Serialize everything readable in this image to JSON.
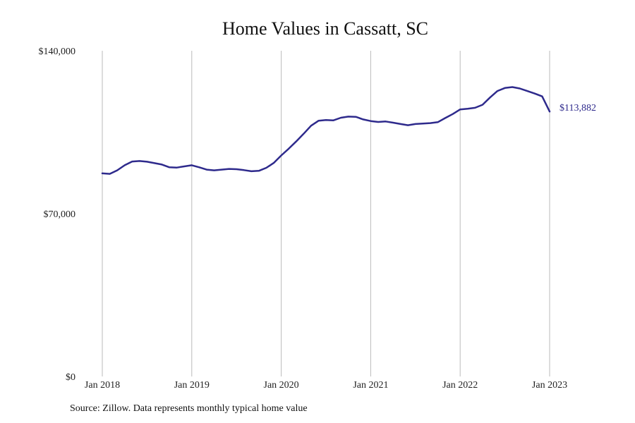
{
  "chart_data": {
    "type": "line",
    "title": "Home Values in Cassatt, SC",
    "xlabel": "",
    "ylabel": "",
    "ylim": [
      0,
      140000
    ],
    "xlim": [
      "2018-01",
      "2023-01"
    ],
    "grid": {
      "vertical": true,
      "horizontal": false
    },
    "legend": "none",
    "line_color": "#2e2a8c",
    "grid_color": "#bbbbbb",
    "y_ticks": [
      {
        "value": 0,
        "label": "$0"
      },
      {
        "value": 70000,
        "label": "$70,000"
      },
      {
        "value": 140000,
        "label": "$140,000"
      }
    ],
    "x_ticks": [
      {
        "value": "2018-01",
        "label": "Jan 2018"
      },
      {
        "value": "2019-01",
        "label": "Jan 2019"
      },
      {
        "value": "2020-01",
        "label": "Jan 2020"
      },
      {
        "value": "2021-01",
        "label": "Jan 2021"
      },
      {
        "value": "2022-01",
        "label": "Jan 2022"
      },
      {
        "value": "2023-01",
        "label": "Jan 2023"
      }
    ],
    "end_label": "$113,882",
    "series": [
      {
        "x": [
          "2018-01",
          "2018-02",
          "2018-03",
          "2018-04",
          "2018-05",
          "2018-06",
          "2018-07",
          "2018-08",
          "2018-09",
          "2018-10",
          "2018-11",
          "2018-12",
          "2019-01",
          "2019-02",
          "2019-03",
          "2019-04",
          "2019-05",
          "2019-06",
          "2019-07",
          "2019-08",
          "2019-09",
          "2019-10",
          "2019-11",
          "2019-12",
          "2020-01",
          "2020-02",
          "2020-03",
          "2020-04",
          "2020-05",
          "2020-06",
          "2020-07",
          "2020-08",
          "2020-09",
          "2020-10",
          "2020-11",
          "2020-12",
          "2021-01",
          "2021-02",
          "2021-03",
          "2021-04",
          "2021-05",
          "2021-06",
          "2021-07",
          "2021-08",
          "2021-09",
          "2021-10",
          "2021-11",
          "2021-12",
          "2022-01",
          "2022-02",
          "2022-03",
          "2022-04",
          "2022-05",
          "2022-06",
          "2022-07",
          "2022-08",
          "2022-09",
          "2022-10",
          "2022-11",
          "2022-12",
          "2023-01"
        ],
        "values": [
          87300,
          87100,
          88600,
          90800,
          92400,
          92600,
          92300,
          91700,
          91100,
          89900,
          89800,
          90300,
          90800,
          89900,
          88900,
          88600,
          88900,
          89200,
          89100,
          88700,
          88200,
          88400,
          89700,
          91800,
          95000,
          97900,
          101000,
          104300,
          107800,
          109900,
          110200,
          110100,
          111200,
          111700,
          111600,
          110500,
          109800,
          109400,
          109600,
          109100,
          108500,
          108000,
          108500,
          108700,
          108900,
          109300,
          111100,
          112800,
          114800,
          115100,
          115500,
          116800,
          119900,
          122700,
          124000,
          124400,
          123800,
          122700,
          121600,
          120400,
          113882
        ]
      }
    ]
  },
  "source_note": "Source: Zillow. Data represents monthly typical home value"
}
